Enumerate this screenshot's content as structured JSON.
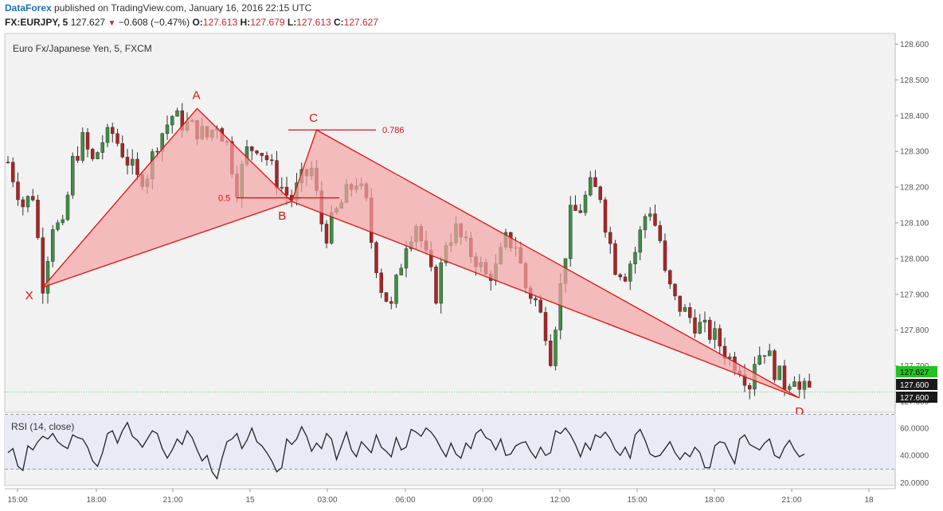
{
  "header": {
    "publisher": "DataForex",
    "published_text": "published on TradingView.com, January 16, 2016 22:15 UTC",
    "symbol": "FX:EURJPY, 5",
    "last": "127.627",
    "change": "−0.608 (−0.47%)",
    "o_label": "O:",
    "o_value": "127.613",
    "h_label": "H:",
    "h_value": "127.679",
    "l_label": "L:",
    "l_value": "127.613",
    "c_label": "C:",
    "c_value": "127.627"
  },
  "colors": {
    "up": "#3d9140",
    "down": "#b22222",
    "pattern": "#e01010",
    "pattern_fill": "#f4a4a4",
    "rsi_line": "#222222",
    "rsi_band": "#e8ebf5",
    "last_price": "#22c322"
  },
  "chart_data": {
    "type": "candlestick",
    "title": "Euro Fx/Japanese Yen, 5, FXCM",
    "y_ticks": [
      "128.600",
      "128.500",
      "128.400",
      "128.300",
      "128.200",
      "128.100",
      "128.000",
      "127.900",
      "127.800",
      "127.700",
      "127.600"
    ],
    "ylim": [
      127.57,
      128.63
    ],
    "x_ticks": [
      "15:00",
      "18:00",
      "21:00",
      "15",
      "03:00",
      "06:00",
      "09:00",
      "12:00",
      "15:00",
      "18:00",
      "21:00",
      "18"
    ],
    "price_labels": [
      {
        "value": "127.627",
        "style": "last"
      },
      {
        "value": "127.600",
        "style": "dark"
      },
      {
        "value": "127.600",
        "style": "dark"
      }
    ],
    "close_path": [
      [
        0,
        128.27
      ],
      [
        3,
        128.15
      ],
      [
        5,
        128.18
      ],
      [
        7,
        127.93
      ],
      [
        9,
        128.1
      ],
      [
        11,
        128.08
      ],
      [
        13,
        128.27
      ],
      [
        15,
        128.33
      ],
      [
        17,
        128.27
      ],
      [
        19,
        128.33
      ],
      [
        21,
        128.35
      ],
      [
        23,
        128.3
      ],
      [
        25,
        128.25
      ],
      [
        26,
        128.22
      ],
      [
        28,
        128.24
      ],
      [
        30,
        128.33
      ],
      [
        33,
        128.4
      ],
      [
        35,
        128.38
      ],
      [
        38,
        128.36
      ],
      [
        40,
        128.34
      ],
      [
        42,
        128.38
      ],
      [
        44,
        128.32
      ],
      [
        46,
        128.2
      ],
      [
        48,
        128.3
      ],
      [
        50,
        128.32
      ],
      [
        52,
        128.28
      ],
      [
        54,
        128.22
      ],
      [
        56,
        128.18
      ],
      [
        57,
        128.17
      ],
      [
        59,
        128.22
      ],
      [
        61,
        128.25
      ],
      [
        63,
        128.1
      ],
      [
        64,
        128.07
      ],
      [
        66,
        128.13
      ],
      [
        68,
        128.18
      ],
      [
        70,
        128.22
      ],
      [
        72,
        128.15
      ],
      [
        73,
        128.05
      ],
      [
        75,
        127.92
      ],
      [
        77,
        127.86
      ],
      [
        78,
        127.93
      ],
      [
        80,
        128.05
      ],
      [
        82,
        128.1
      ],
      [
        84,
        128.0
      ],
      [
        86,
        127.9
      ],
      [
        88,
        128.05
      ],
      [
        90,
        128.08
      ],
      [
        92,
        128.03
      ],
      [
        94,
        128.0
      ],
      [
        96,
        127.95
      ],
      [
        98,
        127.97
      ],
      [
        100,
        128.05
      ],
      [
        102,
        128.04
      ],
      [
        104,
        127.92
      ],
      [
        106,
        127.88
      ],
      [
        108,
        127.8
      ],
      [
        109,
        127.73
      ],
      [
        111,
        127.92
      ],
      [
        113,
        128.12
      ],
      [
        115,
        128.14
      ],
      [
        117,
        128.2
      ],
      [
        119,
        128.18
      ],
      [
        120,
        128.1
      ],
      [
        122,
        127.98
      ],
      [
        124,
        127.96
      ],
      [
        126,
        128.02
      ],
      [
        128,
        128.12
      ],
      [
        129,
        128.14
      ],
      [
        131,
        128.05
      ],
      [
        132,
        127.95
      ],
      [
        134,
        127.88
      ],
      [
        136,
        127.85
      ],
      [
        138,
        127.82
      ],
      [
        140,
        127.8
      ],
      [
        142,
        127.78
      ],
      [
        143,
        127.76
      ],
      [
        145,
        127.72
      ],
      [
        147,
        127.7
      ],
      [
        149,
        127.65
      ],
      [
        150,
        127.72
      ],
      [
        152,
        127.75
      ],
      [
        154,
        127.69
      ],
      [
        156,
        127.65
      ],
      [
        158,
        127.68
      ],
      [
        159,
        127.63
      ]
    ],
    "pattern": {
      "points": [
        {
          "label": "X",
          "i": 7,
          "price": 127.92
        },
        {
          "label": "A",
          "i": 38,
          "price": 128.42
        },
        {
          "label": "B",
          "i": 57,
          "price": 128.16
        },
        {
          "label": "C",
          "i": 62,
          "price": 128.36
        },
        {
          "label": "D",
          "i": 159,
          "price": 127.61
        }
      ],
      "fibs": [
        {
          "label": "0.5",
          "price": 128.17
        },
        {
          "label": "0.786",
          "price": 128.36
        }
      ]
    },
    "rsi": {
      "label": "RSI (14, close)",
      "y_ticks": [
        "60.0000",
        "40.0000",
        "20.0000"
      ],
      "ylim": [
        18,
        68
      ],
      "bands": [
        70,
        30
      ],
      "values": [
        42,
        45,
        32,
        29,
        47,
        44,
        50,
        54,
        52,
        56,
        50,
        47,
        45,
        55,
        53,
        52,
        46,
        36,
        32,
        42,
        56,
        58,
        49,
        58,
        64,
        54,
        51,
        46,
        52,
        58,
        56,
        45,
        38,
        44,
        52,
        48,
        58,
        53,
        44,
        36,
        40,
        28,
        23,
        38,
        50,
        52,
        56,
        45,
        51,
        60,
        50,
        47,
        42,
        36,
        28,
        31,
        52,
        48,
        52,
        61,
        54,
        43,
        49,
        45,
        56,
        52,
        37,
        47,
        57,
        44,
        39,
        50,
        46,
        42,
        55,
        46,
        43,
        39,
        53,
        44,
        46,
        59,
        57,
        54,
        60,
        57,
        52,
        45,
        39,
        49,
        41,
        38,
        49,
        45,
        56,
        59,
        53,
        51,
        44,
        52,
        40,
        41,
        47,
        49,
        50,
        43,
        38,
        46,
        40,
        42,
        58,
        56,
        60,
        55,
        48,
        39,
        49,
        44,
        55,
        53,
        57,
        52,
        44,
        40,
        46,
        38,
        55,
        59,
        51,
        41,
        39,
        40,
        45,
        50,
        42,
        37,
        42,
        39,
        46,
        42,
        31,
        31,
        47,
        50,
        49,
        41,
        34,
        52,
        55,
        48,
        46,
        44,
        49,
        52,
        40,
        38,
        46,
        51,
        44,
        39,
        41
      ]
    }
  }
}
